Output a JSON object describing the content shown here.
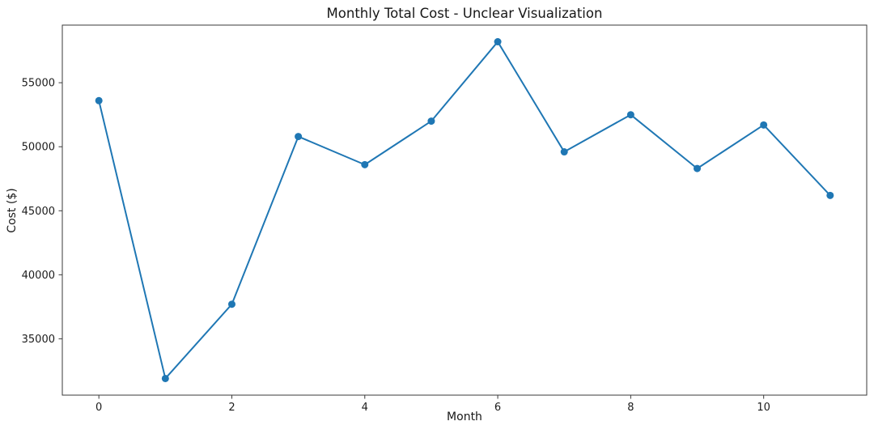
{
  "figure": {
    "background": "#ffffff"
  },
  "chart_data": {
    "type": "line",
    "title": "Monthly Total Cost - Unclear Visualization",
    "xlabel": "Month",
    "ylabel": "Cost ($)",
    "x": [
      0,
      1,
      2,
      3,
      4,
      5,
      6,
      7,
      8,
      9,
      10,
      11
    ],
    "values": [
      53600,
      31900,
      37700,
      50800,
      48600,
      52000,
      58200,
      49600,
      52500,
      48300,
      51700,
      46200
    ],
    "xticks": [
      0,
      2,
      4,
      6,
      8,
      10
    ],
    "xtick_labels": [
      "0",
      "2",
      "4",
      "6",
      "8",
      "10"
    ],
    "yticks": [
      35000,
      40000,
      45000,
      50000,
      55000
    ],
    "ytick_labels": [
      "35000",
      "40000",
      "45000",
      "50000",
      "55000"
    ],
    "xlim": [
      -0.55,
      11.55
    ],
    "ylim": [
      30600,
      59500
    ],
    "grid": false,
    "legend": "none",
    "line_color": "#1f77b4",
    "marker": "circle",
    "marker_color": "#1f77b4",
    "axis_color": "#3a3a3a",
    "tick_text_color": "#1c1c1c"
  }
}
